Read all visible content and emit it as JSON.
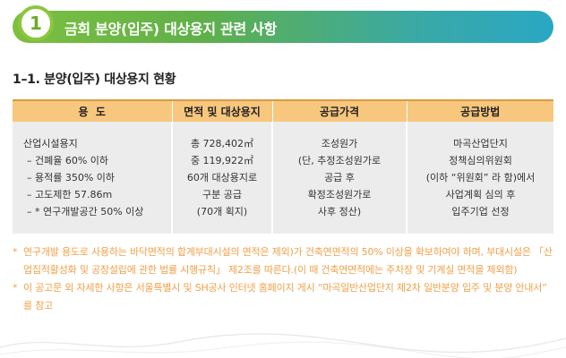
{
  "banner": {
    "number": "1",
    "title": "금회 분양(입주) 대상용지 관련 사항"
  },
  "section": {
    "title": "1–1. 분양(입주) 대상용지 현황"
  },
  "table": {
    "headers": [
      "용  도",
      "면적 및 대상용지",
      "공급가격",
      "공급방법"
    ],
    "col1": [
      "산업시설용지",
      "– 건폐율 60% 이하",
      "– 용적률 350% 이하",
      "– 고도제한 57.86m",
      "– * 연구개발공간 50% 이상"
    ],
    "col2": [
      "총 728,402㎡",
      "중 119,922㎡",
      "60개 대상용지로",
      "구분 공급",
      "(70개 획지)"
    ],
    "col3": [
      "조성원가",
      "(단, 추정조성원가로",
      "공급 후",
      "확정조성원가로",
      "사후 정산)"
    ],
    "col4": [
      "마곡산업단지",
      "정책심의위원회",
      "(이하 “위원회” 라 함)에서",
      "사업계획 심의 후",
      "입주기업 선정"
    ]
  },
  "notes": [
    {
      "bullet": "*",
      "text": "연구개발 용도로 사용하는 바닥면적의 합계부대시설의 면적은 제외)가 건축연면적의 50% 이상을 확보하여야 하며, 부대시설은 「산업집적활성화 및 공장설립에 관한 법률 시행규칙」 제2조를 따른다.(이 때 건축연면적에는 주차장 및 기계실 면적을 제외함)"
    },
    {
      "bullet": "*",
      "text": "이 공고문 외 자세한 사항은 서울특별시 및 SH공사 인터넷 홈페이지 게시 “마곡일반산업단지 제2차 일반분양 입주 및 분양 안내서” 를 참고"
    }
  ],
  "colors": {
    "banner_start": "#7dc03f",
    "banner_end": "#2aa7c4",
    "header_fill": "#f8c77e",
    "cell_fill": "#ececec",
    "note_text": "#f0a048"
  }
}
